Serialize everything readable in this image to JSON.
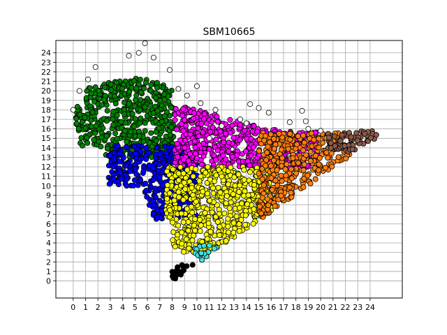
{
  "chart_data": {
    "type": "scatter",
    "title": "SBM10665",
    "xlabel": "",
    "ylabel": "",
    "xlim": [
      -1.4,
      26.6
    ],
    "ylim": [
      -1.8,
      25.3
    ],
    "xticks": [
      0,
      1,
      2,
      3,
      4,
      5,
      6,
      7,
      8,
      9,
      10,
      11,
      12,
      13,
      14,
      15,
      16,
      17,
      18,
      19,
      20,
      21,
      22,
      23,
      24
    ],
    "yticks": [
      0,
      1,
      2,
      3,
      4,
      5,
      6,
      7,
      8,
      9,
      10,
      11,
      12,
      13,
      14,
      15,
      16,
      17,
      18,
      19,
      20,
      21,
      22,
      23,
      24
    ],
    "grid": true,
    "legend": "none",
    "point_outline": "#000000",
    "clusters": [
      {
        "color": "#008000",
        "region": {
          "xmin": 0.2,
          "xmax": 8.2,
          "yfunc": "top-left",
          "ymin": 13.0,
          "ymax": 21.4
        }
      },
      {
        "color": "#0000ff",
        "region": {
          "xmin": 2.8,
          "xmax": 10.0,
          "ymin": 6.4,
          "ymax": 14.2
        }
      },
      {
        "color": "#ff00ff",
        "region": {
          "xmin": 8.2,
          "xmax": 19.8,
          "ymin": 11.8,
          "ymax": 19.0
        }
      },
      {
        "color": "#ffff00",
        "region": {
          "xmin": 7.5,
          "xmax": 16.0,
          "ymin": 3.0,
          "ymax": 12.0
        }
      },
      {
        "color": "#ff7f0e",
        "region": {
          "xmin": 15.0,
          "xmax": 22.5,
          "ymin": 4.8,
          "ymax": 15.6
        }
      },
      {
        "color": "#8b5a4a",
        "region": {
          "xmin": 20.5,
          "xmax": 25.2,
          "ymin": 13.5,
          "ymax": 16.0
        }
      },
      {
        "color": "#40e0e0",
        "region": {
          "xmin": 9.8,
          "xmax": 13.4,
          "ymin": 1.8,
          "ymax": 3.8
        }
      },
      {
        "color": "#000000",
        "region": {
          "xmin": 7.8,
          "xmax": 10.0,
          "ymin": 0.0,
          "ymax": 2.0
        }
      }
    ],
    "outliers": [
      [
        0.0,
        18.0
      ],
      [
        0.5,
        20.0
      ],
      [
        1.2,
        21.2
      ],
      [
        1.8,
        22.5
      ],
      [
        4.5,
        23.7
      ],
      [
        5.3,
        24.0
      ],
      [
        5.8,
        25.0
      ],
      [
        6.5,
        23.5
      ],
      [
        7.8,
        22.2
      ],
      [
        10.0,
        20.5
      ],
      [
        8.5,
        20.2
      ],
      [
        9.2,
        19.5
      ],
      [
        10.3,
        18.7
      ],
      [
        11.5,
        18.0
      ],
      [
        14.3,
        18.6
      ],
      [
        15.0,
        18.2
      ],
      [
        15.8,
        17.7
      ],
      [
        13.5,
        17.0
      ],
      [
        14.0,
        16.6
      ],
      [
        17.5,
        16.7
      ],
      [
        18.5,
        17.9
      ],
      [
        18.8,
        16.8
      ],
      [
        19.0,
        16.0
      ],
      [
        20.0,
        15.8
      ],
      [
        11.0,
        15.0
      ],
      [
        12.0,
        16.3
      ]
    ]
  }
}
